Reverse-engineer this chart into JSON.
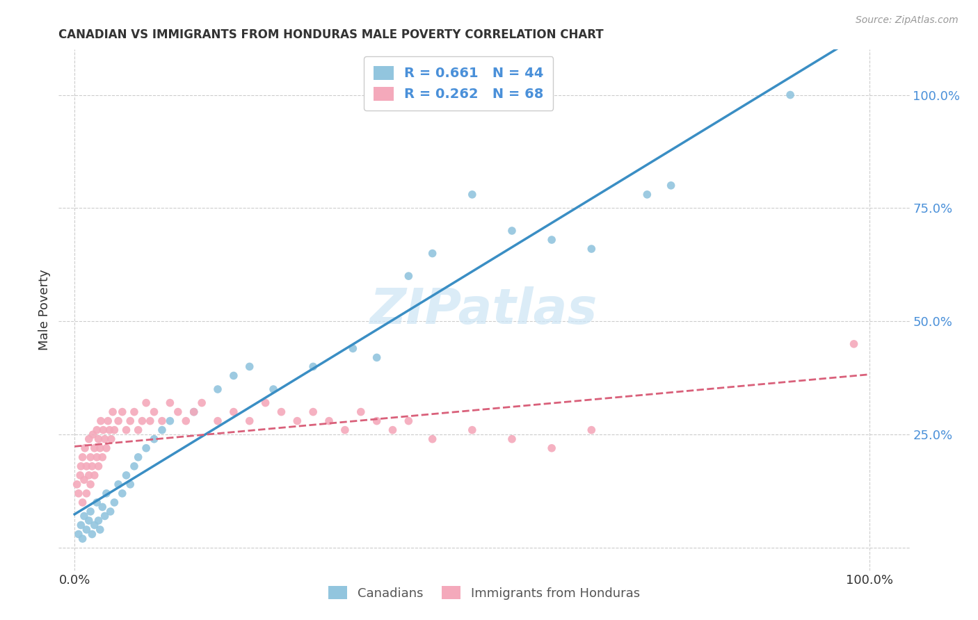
{
  "title": "CANADIAN VS IMMIGRANTS FROM HONDURAS MALE POVERTY CORRELATION CHART",
  "source": "Source: ZipAtlas.com",
  "ylabel": "Male Poverty",
  "ytick_vals": [
    0.0,
    0.25,
    0.5,
    0.75,
    1.0
  ],
  "ytick_labels": [
    "",
    "25.0%",
    "50.0%",
    "75.0%",
    "100.0%"
  ],
  "xtick_vals": [
    0.0,
    1.0
  ],
  "xtick_labels": [
    "0.0%",
    "100.0%"
  ],
  "legend_label1": "Canadians",
  "legend_label2": "Immigrants from Honduras",
  "legend_r1": "R = 0.661",
  "legend_n1": "N = 44",
  "legend_r2": "R = 0.262",
  "legend_n2": "N = 68",
  "color_blue": "#92c5de",
  "color_pink": "#f4a9bb",
  "color_blue_line": "#3a8ec4",
  "color_pink_line": "#d9607a",
  "watermark": "ZIPatlas",
  "watermark_color": "#cce5f5",
  "xlim": [
    -0.02,
    1.05
  ],
  "ylim": [
    -0.05,
    1.1
  ],
  "canadian_x": [
    0.005,
    0.008,
    0.01,
    0.012,
    0.015,
    0.018,
    0.02,
    0.022,
    0.025,
    0.028,
    0.03,
    0.032,
    0.035,
    0.038,
    0.04,
    0.045,
    0.05,
    0.055,
    0.06,
    0.065,
    0.07,
    0.075,
    0.08,
    0.09,
    0.1,
    0.11,
    0.12,
    0.15,
    0.18,
    0.2,
    0.22,
    0.25,
    0.3,
    0.35,
    0.38,
    0.42,
    0.45,
    0.5,
    0.55,
    0.6,
    0.65,
    0.72,
    0.75,
    0.9
  ],
  "canadian_y": [
    0.03,
    0.05,
    0.02,
    0.07,
    0.04,
    0.06,
    0.08,
    0.03,
    0.05,
    0.1,
    0.06,
    0.04,
    0.09,
    0.07,
    0.12,
    0.08,
    0.1,
    0.14,
    0.12,
    0.16,
    0.14,
    0.18,
    0.2,
    0.22,
    0.24,
    0.26,
    0.28,
    0.3,
    0.35,
    0.38,
    0.4,
    0.35,
    0.4,
    0.44,
    0.42,
    0.6,
    0.65,
    0.78,
    0.7,
    0.68,
    0.66,
    0.78,
    0.8,
    1.0
  ],
  "honduras_x": [
    0.003,
    0.005,
    0.007,
    0.008,
    0.01,
    0.01,
    0.012,
    0.013,
    0.015,
    0.015,
    0.018,
    0.018,
    0.02,
    0.02,
    0.022,
    0.023,
    0.025,
    0.025,
    0.028,
    0.028,
    0.03,
    0.03,
    0.032,
    0.033,
    0.035,
    0.036,
    0.038,
    0.04,
    0.042,
    0.044,
    0.046,
    0.048,
    0.05,
    0.055,
    0.06,
    0.065,
    0.07,
    0.075,
    0.08,
    0.085,
    0.09,
    0.095,
    0.1,
    0.11,
    0.12,
    0.13,
    0.14,
    0.15,
    0.16,
    0.18,
    0.2,
    0.22,
    0.24,
    0.26,
    0.28,
    0.3,
    0.32,
    0.34,
    0.36,
    0.38,
    0.4,
    0.42,
    0.45,
    0.5,
    0.55,
    0.6,
    0.65,
    0.98
  ],
  "honduras_y": [
    0.14,
    0.12,
    0.16,
    0.18,
    0.1,
    0.2,
    0.15,
    0.22,
    0.12,
    0.18,
    0.16,
    0.24,
    0.14,
    0.2,
    0.18,
    0.25,
    0.16,
    0.22,
    0.2,
    0.26,
    0.18,
    0.24,
    0.22,
    0.28,
    0.2,
    0.26,
    0.24,
    0.22,
    0.28,
    0.26,
    0.24,
    0.3,
    0.26,
    0.28,
    0.3,
    0.26,
    0.28,
    0.3,
    0.26,
    0.28,
    0.32,
    0.28,
    0.3,
    0.28,
    0.32,
    0.3,
    0.28,
    0.3,
    0.32,
    0.28,
    0.3,
    0.28,
    0.32,
    0.3,
    0.28,
    0.3,
    0.28,
    0.26,
    0.3,
    0.28,
    0.26,
    0.28,
    0.24,
    0.26,
    0.24,
    0.22,
    0.26,
    0.45
  ]
}
